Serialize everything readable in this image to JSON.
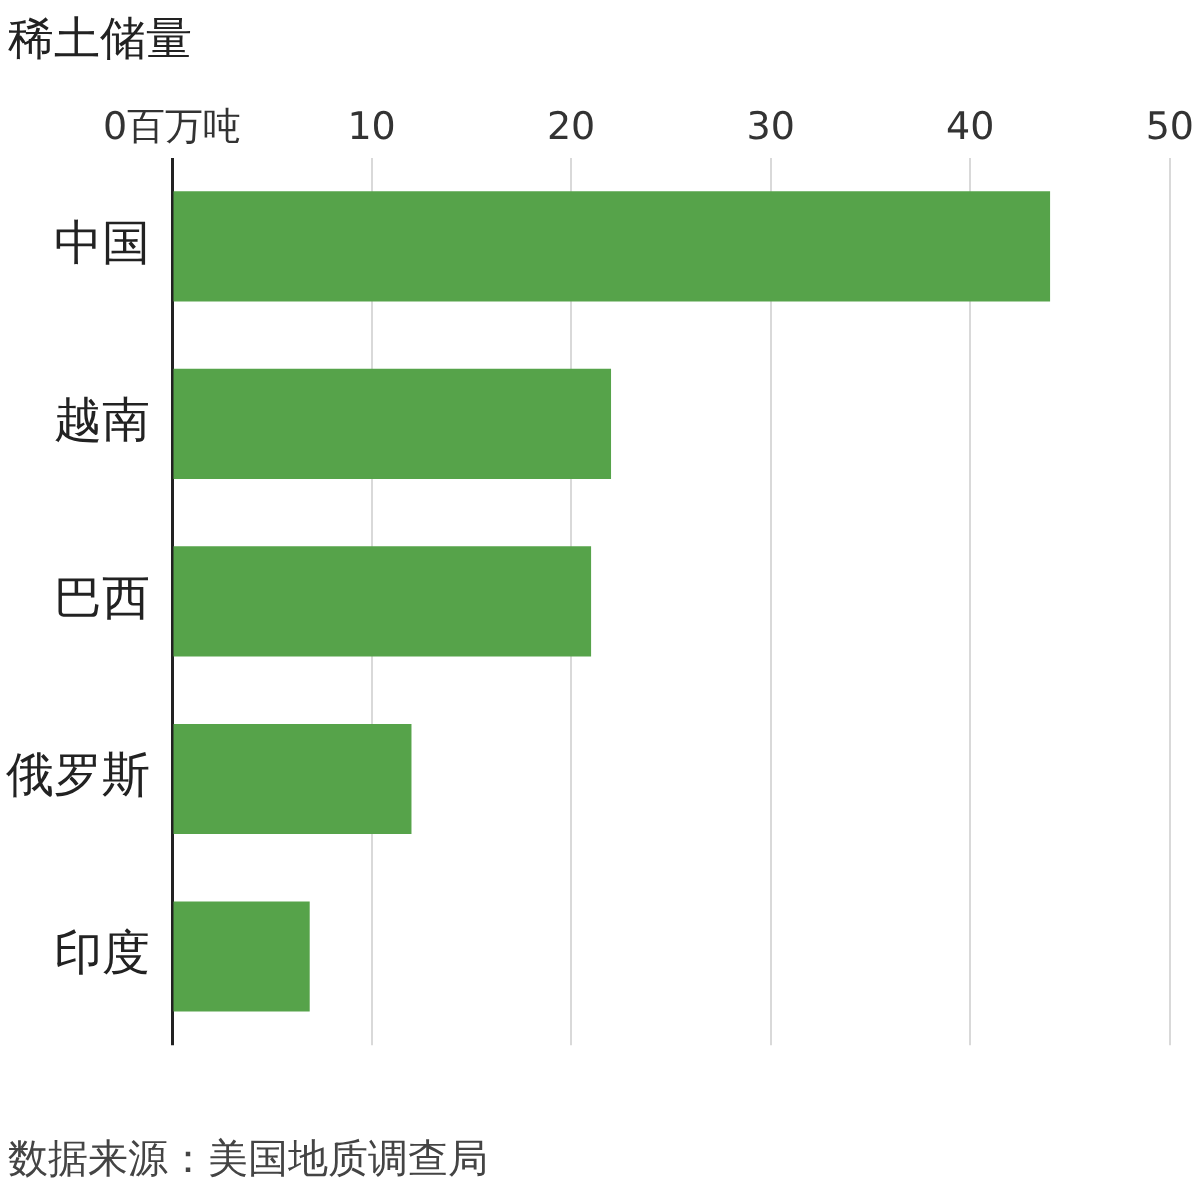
{
  "chart_data": {
    "type": "bar",
    "orientation": "horizontal",
    "title": "稀土储量",
    "categories": [
      "中国",
      "越南",
      "巴西",
      "俄罗斯",
      "印度"
    ],
    "values": [
      44,
      22,
      21,
      12,
      6.9
    ],
    "color": "#56a34a",
    "xlim": [
      0,
      50
    ],
    "xticks": [
      {
        "value": 0,
        "label": "0百万吨"
      },
      10,
      20,
      30,
      40,
      50
    ],
    "grid": "x",
    "legend": false,
    "annotations": [
      "数据来源：美国地质调查局"
    ]
  }
}
